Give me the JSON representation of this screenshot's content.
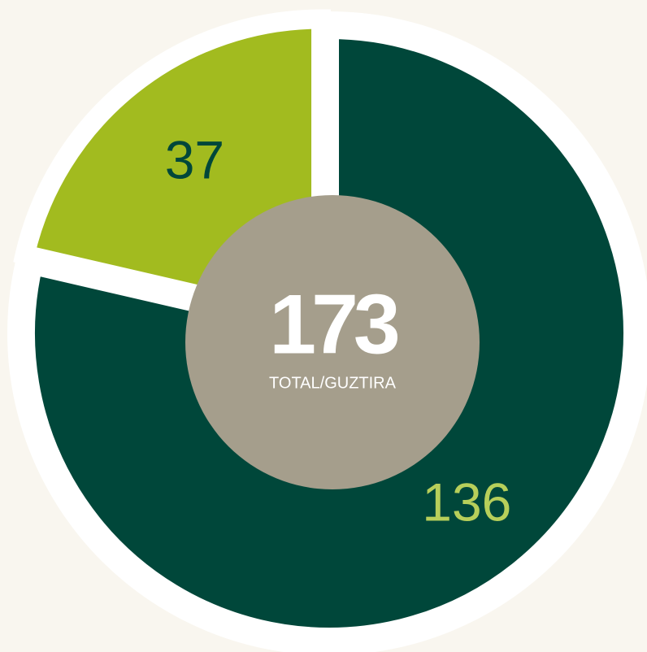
{
  "chart_data": {
    "type": "donut",
    "categories": [
      null,
      null
    ],
    "values": [
      136,
      37
    ],
    "colors": [
      "#00473a",
      "#a2bb1f"
    ],
    "label_colors": [
      "#b7cf5a",
      "#00473a"
    ],
    "total": 173,
    "total_label": "TOTAL/GUZTIRA",
    "center_color": "#a59e8c"
  }
}
